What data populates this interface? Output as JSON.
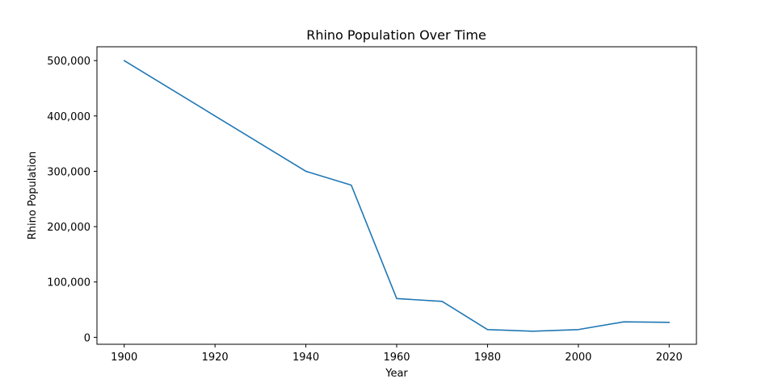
{
  "chart_data": {
    "type": "line",
    "title": "Rhino Population Over Time",
    "xlabel": "Year",
    "ylabel": "Rhino Population",
    "x": [
      1900,
      1940,
      1950,
      1960,
      1970,
      1980,
      1990,
      2000,
      2010,
      2020
    ],
    "series": [
      {
        "values": [
          500000,
          300000,
          275000,
          70000,
          65000,
          14000,
          11000,
          14000,
          28000,
          27000
        ],
        "color": "#1f77b4"
      }
    ],
    "xlim": [
      1894,
      2026
    ],
    "ylim": [
      -12550,
      525000
    ],
    "xticks": [
      1900,
      1920,
      1940,
      1960,
      1980,
      2000,
      2020
    ],
    "xtick_labels": [
      "1900",
      "1920",
      "1940",
      "1960",
      "1980",
      "2000",
      "2020"
    ],
    "yticks": [
      0,
      100000,
      200000,
      300000,
      400000,
      500000
    ],
    "ytick_labels": [
      "0",
      "100,000",
      "200,000",
      "300,000",
      "400,000",
      "500,000"
    ],
    "grid": false,
    "legend": "none"
  }
}
